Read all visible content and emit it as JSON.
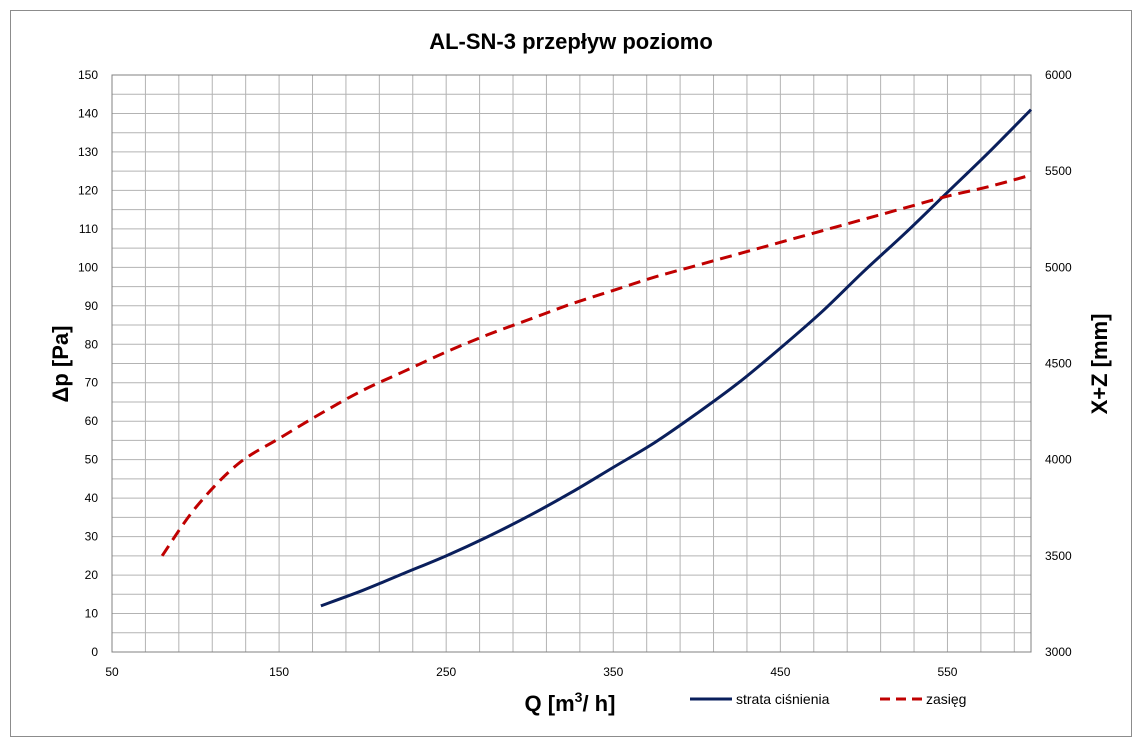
{
  "chart_data": {
    "type": "line",
    "title": "AL-SN-3 przepływ poziomo",
    "xlabel": "Q [m³/h]",
    "ylabel": "Δp [Pa]",
    "y2label": "X+Z [mm]",
    "xlim": [
      50,
      600
    ],
    "ylim": [
      0,
      150
    ],
    "y2lim": [
      3000,
      6000
    ],
    "x_ticks": [
      "50",
      "150",
      "250",
      "350",
      "450",
      "550"
    ],
    "y_ticks": [
      "0",
      "10",
      "20",
      "30",
      "40",
      "50",
      "60",
      "70",
      "80",
      "90",
      "100",
      "110",
      "120",
      "130",
      "140",
      "150"
    ],
    "y2_ticks": [
      "3000",
      "3500",
      "4000",
      "4500",
      "5000",
      "5500",
      "6000"
    ],
    "grid": true,
    "legend_position": "bottom-right",
    "series": [
      {
        "name": "strata ciśnienia",
        "axis": "left",
        "style": "solid",
        "color": "#0a1f5c",
        "points": [
          [
            175,
            12
          ],
          [
            200,
            16
          ],
          [
            225,
            20.5
          ],
          [
            250,
            25
          ],
          [
            275,
            30
          ],
          [
            300,
            35.5
          ],
          [
            325,
            41.5
          ],
          [
            350,
            48
          ],
          [
            375,
            54.5
          ],
          [
            400,
            62
          ],
          [
            425,
            70
          ],
          [
            450,
            79
          ],
          [
            475,
            88.5
          ],
          [
            500,
            99
          ],
          [
            525,
            109
          ],
          [
            550,
            119.5
          ],
          [
            575,
            130
          ],
          [
            600,
            141
          ]
        ]
      },
      {
        "name": "zasięg",
        "axis": "right",
        "style": "dashed",
        "color": "#c00000",
        "points": [
          [
            80,
            3500
          ],
          [
            100,
            3750
          ],
          [
            125,
            3975
          ],
          [
            150,
            4110
          ],
          [
            175,
            4240
          ],
          [
            200,
            4360
          ],
          [
            225,
            4460
          ],
          [
            250,
            4560
          ],
          [
            275,
            4650
          ],
          [
            300,
            4730
          ],
          [
            325,
            4810
          ],
          [
            350,
            4880
          ],
          [
            375,
            4950
          ],
          [
            400,
            5010
          ],
          [
            425,
            5070
          ],
          [
            450,
            5130
          ],
          [
            475,
            5190
          ],
          [
            500,
            5250
          ],
          [
            525,
            5310
          ],
          [
            550,
            5370
          ],
          [
            575,
            5420
          ],
          [
            600,
            5480
          ]
        ]
      }
    ]
  }
}
